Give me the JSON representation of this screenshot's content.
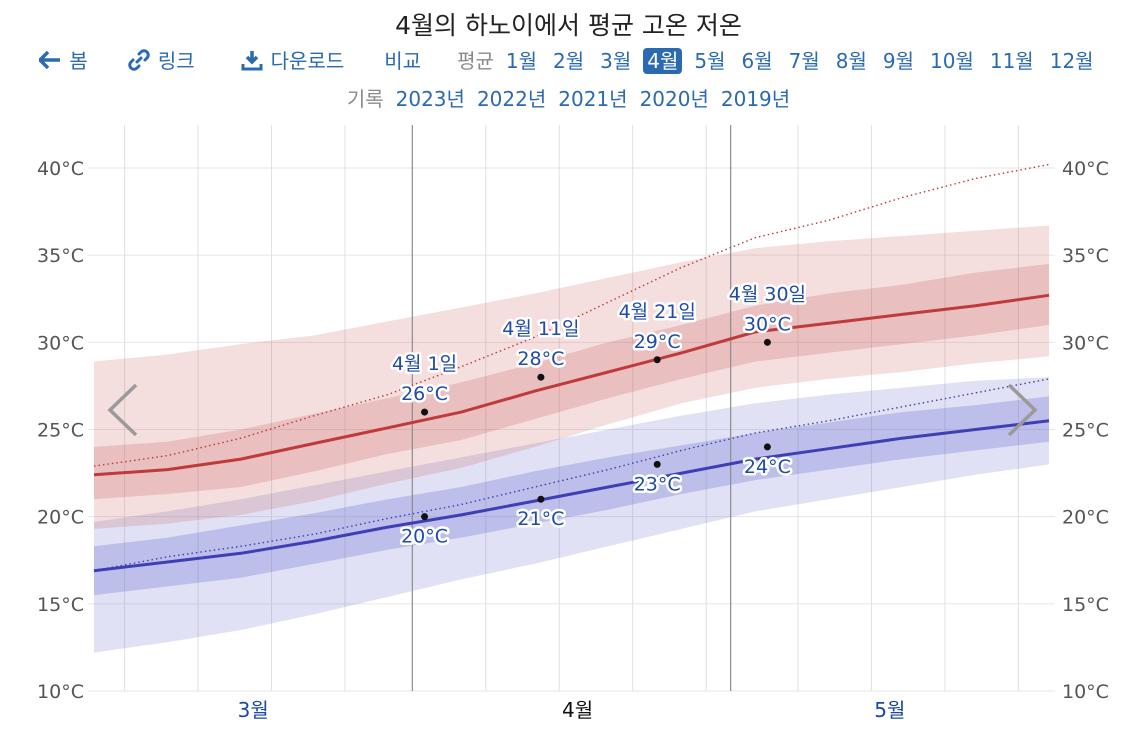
{
  "title": "4월의 하노이에서 평균 고온 저온",
  "nav": {
    "back_label": "봄",
    "link_label": "링크",
    "download_label": "다운로드",
    "compare_label": "비교",
    "average_label": "평균",
    "months": [
      "1월",
      "2월",
      "3월",
      "4월",
      "5월",
      "6월",
      "7월",
      "8월",
      "9월",
      "10월",
      "11월",
      "12월"
    ],
    "active_month": "4월",
    "record_label": "기록",
    "years": [
      "2023년",
      "2022년",
      "2021년",
      "2020년",
      "2019년"
    ]
  },
  "colors": {
    "high": "#c0393b",
    "low": "#3e3fb4",
    "accent": "#2a6ab1",
    "label": "#1f4ca8"
  },
  "icons": {
    "back": "arrow-left-icon",
    "link": "link-icon",
    "download": "download-icon",
    "prev": "chevron-left-icon",
    "next": "chevron-right-icon"
  },
  "chart_data": {
    "type": "area",
    "title": "4월의 하노이에서 평균 고온 저온",
    "y_unit": "°C",
    "ylim": [
      10,
      40
    ],
    "y_ticks": [
      "10°C",
      "15°C",
      "20°C",
      "25°C",
      "30°C",
      "35°C",
      "40°C"
    ],
    "y_tick_values": [
      10,
      15,
      20,
      25,
      30,
      35,
      40
    ],
    "xlim_days": [
      0,
      78
    ],
    "x_months": [
      {
        "label": "3월",
        "day": 13
      },
      {
        "label": "4월",
        "day": 39.5,
        "current": true
      },
      {
        "label": "5월",
        "day": 65
      }
    ],
    "month_boundaries_days": [
      26,
      52
    ],
    "week_gridlines_days": [
      2.5,
      8.5,
      14.5,
      20.5,
      32,
      38,
      44,
      50,
      57.5,
      63.5,
      69.5,
      75.5
    ],
    "x_days": [
      0,
      6,
      12,
      18,
      24,
      30,
      36,
      42,
      48,
      54,
      60,
      66,
      72,
      78
    ],
    "high_mean": [
      22.4,
      22.7,
      23.3,
      24.2,
      25.1,
      26.0,
      27.2,
      28.3,
      29.4,
      30.6,
      31.1,
      31.6,
      32.1,
      32.7
    ],
    "high_p25": [
      21.0,
      21.3,
      21.7,
      22.6,
      23.6,
      24.4,
      25.6,
      26.8,
      27.9,
      28.9,
      29.4,
      29.9,
      30.4,
      31.0
    ],
    "high_p75": [
      24.0,
      24.3,
      25.0,
      25.9,
      26.8,
      27.7,
      28.8,
      30.0,
      31.0,
      32.1,
      32.8,
      33.3,
      34.0,
      34.5
    ],
    "high_p10": [
      19.3,
      19.6,
      20.1,
      20.9,
      21.9,
      22.8,
      24.0,
      25.3,
      26.5,
      27.4,
      27.9,
      28.3,
      28.8,
      29.2
    ],
    "high_p90": [
      28.9,
      29.3,
      29.9,
      30.4,
      31.2,
      32.0,
      32.8,
      33.7,
      34.6,
      35.4,
      35.8,
      36.1,
      36.4,
      36.7
    ],
    "low_mean": [
      16.9,
      17.4,
      17.9,
      18.6,
      19.4,
      20.1,
      20.9,
      21.7,
      22.5,
      23.3,
      23.9,
      24.5,
      25.0,
      25.5
    ],
    "low_p25": [
      15.5,
      16.0,
      16.5,
      17.3,
      18.1,
      18.8,
      19.6,
      20.4,
      21.3,
      22.1,
      22.7,
      23.3,
      23.8,
      24.3
    ],
    "low_p75": [
      18.3,
      18.8,
      19.5,
      20.2,
      21.0,
      21.7,
      22.6,
      23.4,
      24.1,
      24.8,
      25.4,
      26.0,
      26.4,
      26.9
    ],
    "low_p10": [
      12.2,
      12.8,
      13.5,
      14.4,
      15.4,
      16.4,
      17.3,
      18.3,
      19.3,
      20.3,
      21.0,
      21.7,
      22.4,
      23.0
    ],
    "low_p90": [
      19.7,
      20.3,
      21.0,
      21.8,
      22.6,
      23.4,
      24.2,
      25.0,
      25.8,
      26.5,
      27.0,
      27.4,
      27.8,
      28.0
    ],
    "high_record_dotted": [
      22.9,
      23.5,
      24.5,
      25.8,
      27.0,
      28.6,
      30.3,
      32.3,
      34.3,
      36.0,
      37.0,
      38.3,
      39.4,
      40.2
    ],
    "low_record_dotted": [
      16.9,
      17.7,
      18.3,
      19.0,
      19.9,
      20.7,
      21.7,
      22.7,
      23.8,
      24.8,
      25.5,
      26.3,
      27.1,
      27.9
    ],
    "annotations": [
      {
        "date": "4월 1일",
        "day": 27,
        "high": 26,
        "low": 20,
        "high_label": "26°C",
        "low_label": "20°C"
      },
      {
        "date": "4월 11일",
        "day": 36.5,
        "high": 28,
        "low": 21,
        "high_label": "28°C",
        "low_label": "21°C"
      },
      {
        "date": "4월 21일",
        "day": 46,
        "high": 29,
        "low": 23,
        "high_label": "29°C",
        "low_label": "23°C"
      },
      {
        "date": "4월 30일",
        "day": 55,
        "high": 30,
        "low": 24,
        "high_label": "30°C",
        "low_label": "24°C"
      }
    ]
  }
}
